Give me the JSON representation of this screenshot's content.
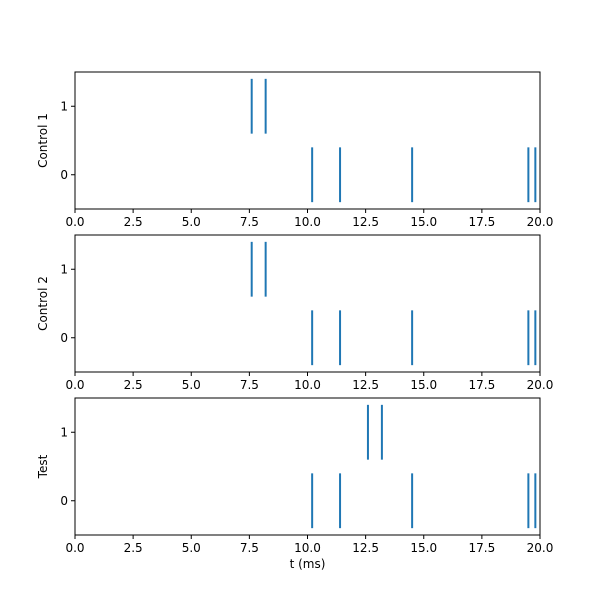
{
  "chart_data": [
    {
      "type": "eventplot",
      "ylabel": "Control 1",
      "xlabel": "",
      "xlim": [
        0,
        20
      ],
      "ylim": [
        -0.5,
        1.5
      ],
      "xticks": [
        "0.0",
        "2.5",
        "5.0",
        "7.5",
        "10.0",
        "12.5",
        "15.0",
        "17.5",
        "20.0"
      ],
      "yticks": [
        "0",
        "1"
      ],
      "color": "#1f77b4",
      "series": [
        {
          "y": 0,
          "events": [
            10.2,
            11.4,
            14.5,
            19.5,
            19.8
          ]
        },
        {
          "y": 1,
          "events": [
            7.6,
            8.2
          ]
        }
      ]
    },
    {
      "type": "eventplot",
      "ylabel": "Control 2",
      "xlabel": "",
      "xlim": [
        0,
        20
      ],
      "ylim": [
        -0.5,
        1.5
      ],
      "xticks": [
        "0.0",
        "2.5",
        "5.0",
        "7.5",
        "10.0",
        "12.5",
        "15.0",
        "17.5",
        "20.0"
      ],
      "yticks": [
        "0",
        "1"
      ],
      "color": "#1f77b4",
      "series": [
        {
          "y": 0,
          "events": [
            10.2,
            11.4,
            14.5,
            19.5,
            19.8
          ]
        },
        {
          "y": 1,
          "events": [
            7.6,
            8.2
          ]
        }
      ]
    },
    {
      "type": "eventplot",
      "ylabel": "Test",
      "xlabel": "t (ms)",
      "xlim": [
        0,
        20
      ],
      "ylim": [
        -0.5,
        1.5
      ],
      "xticks": [
        "0.0",
        "2.5",
        "5.0",
        "7.5",
        "10.0",
        "12.5",
        "15.0",
        "17.5",
        "20.0"
      ],
      "yticks": [
        "0",
        "1"
      ],
      "color": "#1f77b4",
      "series": [
        {
          "y": 0,
          "events": [
            10.2,
            11.4,
            14.5,
            19.5,
            19.8
          ]
        },
        {
          "y": 1,
          "events": [
            12.6,
            13.2
          ]
        }
      ]
    }
  ]
}
